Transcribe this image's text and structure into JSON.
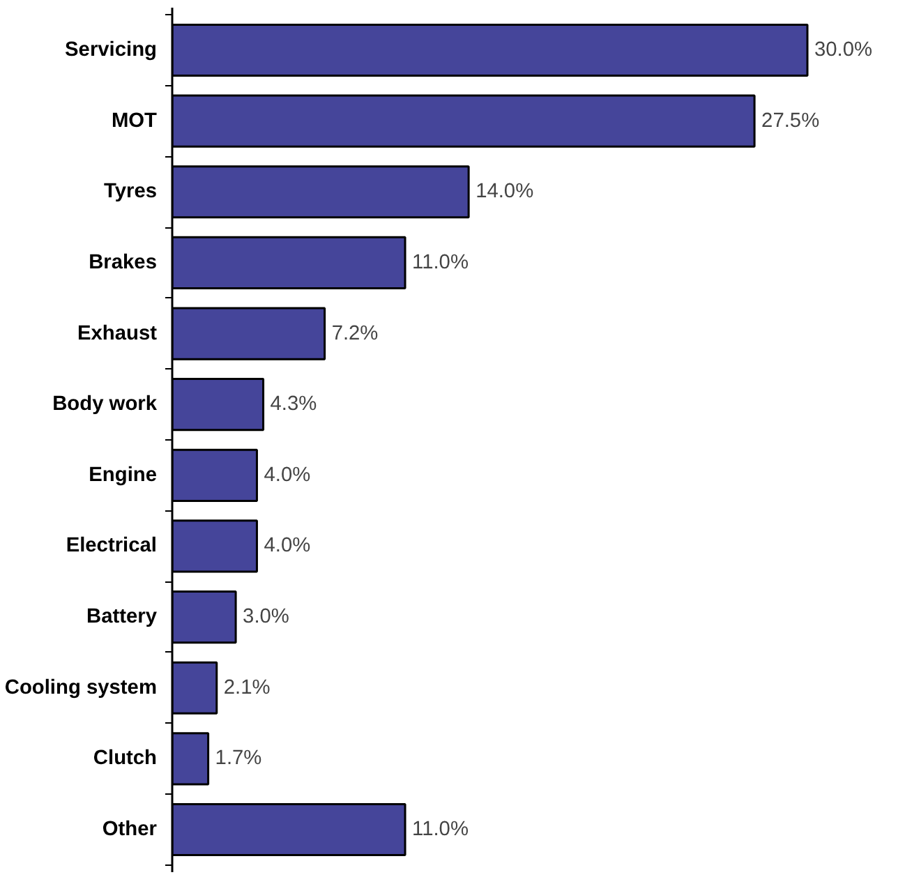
{
  "chart_data": {
    "type": "bar",
    "orientation": "horizontal",
    "categories": [
      "Servicing",
      "MOT",
      "Tyres",
      "Brakes",
      "Exhaust",
      "Body work",
      "Engine",
      "Electrical",
      "Battery",
      "Cooling system",
      "Clutch",
      "Other"
    ],
    "values": [
      30.0,
      27.5,
      14.0,
      11.0,
      7.2,
      4.3,
      4.0,
      4.0,
      3.0,
      2.1,
      1.7,
      11.0
    ],
    "value_labels": [
      "30.0%",
      "27.5%",
      "14.0%",
      "11.0%",
      "7.2%",
      "4.3%",
      "4.0%",
      "4.0%",
      "3.0%",
      "2.1%",
      "1.7%",
      "11.0%"
    ],
    "color": "#45459a"
  }
}
